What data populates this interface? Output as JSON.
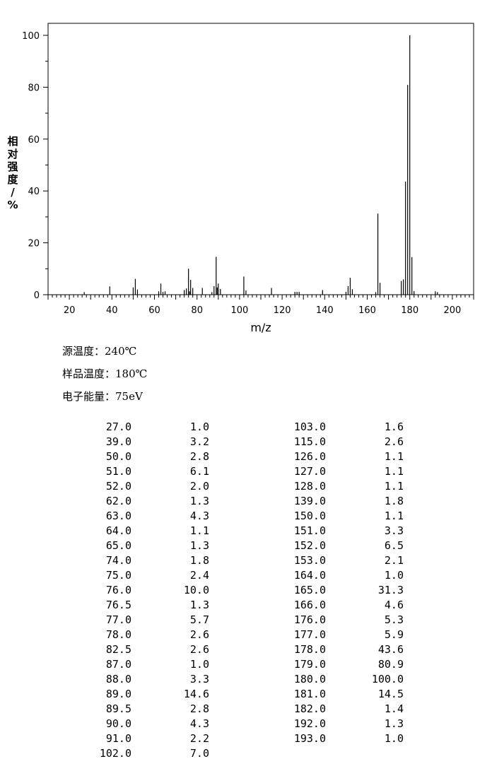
{
  "chart_data": {
    "type": "bar",
    "xlabel": "m/z",
    "ylabel": "相对强度/%",
    "xlim": [
      10,
      210
    ],
    "ylim": [
      0,
      105
    ],
    "x_ticks": [
      "20",
      "40",
      "60",
      "80",
      "100",
      "120",
      "140",
      "160",
      "180",
      "200"
    ],
    "y_ticks": [
      "0",
      "20",
      "40",
      "60",
      "80",
      "100"
    ],
    "grid": false,
    "peaks": [
      {
        "mz": 27.0,
        "intensity": 1.0
      },
      {
        "mz": 39.0,
        "intensity": 3.2
      },
      {
        "mz": 50.0,
        "intensity": 2.8
      },
      {
        "mz": 51.0,
        "intensity": 6.1
      },
      {
        "mz": 52.0,
        "intensity": 2.0
      },
      {
        "mz": 62.0,
        "intensity": 1.3
      },
      {
        "mz": 63.0,
        "intensity": 4.3
      },
      {
        "mz": 64.0,
        "intensity": 1.1
      },
      {
        "mz": 65.0,
        "intensity": 1.3
      },
      {
        "mz": 74.0,
        "intensity": 1.8
      },
      {
        "mz": 75.0,
        "intensity": 2.4
      },
      {
        "mz": 76.0,
        "intensity": 10.0
      },
      {
        "mz": 76.5,
        "intensity": 1.3
      },
      {
        "mz": 77.0,
        "intensity": 5.7
      },
      {
        "mz": 78.0,
        "intensity": 2.6
      },
      {
        "mz": 82.5,
        "intensity": 2.6
      },
      {
        "mz": 87.0,
        "intensity": 1.0
      },
      {
        "mz": 88.0,
        "intensity": 3.3
      },
      {
        "mz": 89.0,
        "intensity": 14.6
      },
      {
        "mz": 89.5,
        "intensity": 2.8
      },
      {
        "mz": 90.0,
        "intensity": 4.3
      },
      {
        "mz": 91.0,
        "intensity": 2.2
      },
      {
        "mz": 102.0,
        "intensity": 7.0
      },
      {
        "mz": 103.0,
        "intensity": 1.6
      },
      {
        "mz": 115.0,
        "intensity": 2.6
      },
      {
        "mz": 126.0,
        "intensity": 1.1
      },
      {
        "mz": 127.0,
        "intensity": 1.1
      },
      {
        "mz": 128.0,
        "intensity": 1.1
      },
      {
        "mz": 139.0,
        "intensity": 1.8
      },
      {
        "mz": 150.0,
        "intensity": 1.1
      },
      {
        "mz": 151.0,
        "intensity": 3.3
      },
      {
        "mz": 152.0,
        "intensity": 6.5
      },
      {
        "mz": 153.0,
        "intensity": 2.1
      },
      {
        "mz": 164.0,
        "intensity": 1.0
      },
      {
        "mz": 165.0,
        "intensity": 31.3
      },
      {
        "mz": 166.0,
        "intensity": 4.6
      },
      {
        "mz": 176.0,
        "intensity": 5.3
      },
      {
        "mz": 177.0,
        "intensity": 5.9
      },
      {
        "mz": 178.0,
        "intensity": 43.6
      },
      {
        "mz": 179.0,
        "intensity": 80.9
      },
      {
        "mz": 180.0,
        "intensity": 100.0
      },
      {
        "mz": 181.0,
        "intensity": 14.5
      },
      {
        "mz": 182.0,
        "intensity": 1.4
      },
      {
        "mz": 192.0,
        "intensity": 1.3
      },
      {
        "mz": 193.0,
        "intensity": 1.0
      }
    ]
  },
  "conditions": {
    "source_temp": "源温度：240℃",
    "sample_temp": "样品温度：180℃",
    "electron_energy": "电子能量：75eV"
  },
  "table": {
    "left": [
      [
        "27.0",
        "1.0"
      ],
      [
        "39.0",
        "3.2"
      ],
      [
        "50.0",
        "2.8"
      ],
      [
        "51.0",
        "6.1"
      ],
      [
        "52.0",
        "2.0"
      ],
      [
        "62.0",
        "1.3"
      ],
      [
        "63.0",
        "4.3"
      ],
      [
        "64.0",
        "1.1"
      ],
      [
        "65.0",
        "1.3"
      ],
      [
        "74.0",
        "1.8"
      ],
      [
        "75.0",
        "2.4"
      ],
      [
        "76.0",
        "10.0"
      ],
      [
        "76.5",
        "1.3"
      ],
      [
        "77.0",
        "5.7"
      ],
      [
        "78.0",
        "2.6"
      ],
      [
        "82.5",
        "2.6"
      ],
      [
        "87.0",
        "1.0"
      ],
      [
        "88.0",
        "3.3"
      ],
      [
        "89.0",
        "14.6"
      ],
      [
        "89.5",
        "2.8"
      ],
      [
        "90.0",
        "4.3"
      ],
      [
        "91.0",
        "2.2"
      ],
      [
        "102.0",
        "7.0"
      ]
    ],
    "right": [
      [
        "103.0",
        "1.6"
      ],
      [
        "115.0",
        "2.6"
      ],
      [
        "126.0",
        "1.1"
      ],
      [
        "127.0",
        "1.1"
      ],
      [
        "128.0",
        "1.1"
      ],
      [
        "139.0",
        "1.8"
      ],
      [
        "150.0",
        "1.1"
      ],
      [
        "151.0",
        "3.3"
      ],
      [
        "152.0",
        "6.5"
      ],
      [
        "153.0",
        "2.1"
      ],
      [
        "164.0",
        "1.0"
      ],
      [
        "165.0",
        "31.3"
      ],
      [
        "166.0",
        "4.6"
      ],
      [
        "176.0",
        "5.3"
      ],
      [
        "177.0",
        "5.9"
      ],
      [
        "178.0",
        "43.6"
      ],
      [
        "179.0",
        "80.9"
      ],
      [
        "180.0",
        "100.0"
      ],
      [
        "181.0",
        "14.5"
      ],
      [
        "182.0",
        "1.4"
      ],
      [
        "192.0",
        "1.3"
      ],
      [
        "193.0",
        "1.0"
      ]
    ]
  }
}
